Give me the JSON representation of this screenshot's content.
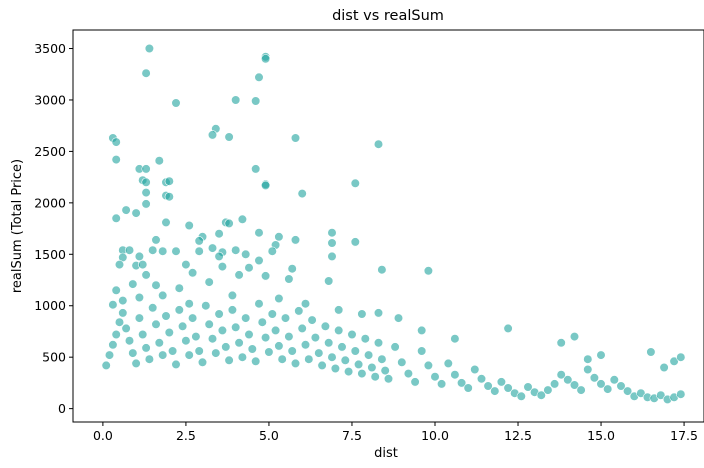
{
  "chart_data": {
    "type": "scatter",
    "title": "dist vs realSum",
    "xlabel": "dist",
    "ylabel": "realSum (Total Price)",
    "xlim": [
      -0.9,
      18.1
    ],
    "ylim": [
      -130,
      3680
    ],
    "xticks": [
      0.0,
      2.5,
      5.0,
      7.5,
      10.0,
      12.5,
      15.0,
      17.5
    ],
    "xtick_labels": [
      "0.0",
      "2.5",
      "5.0",
      "7.5",
      "10.0",
      "12.5",
      "15.0",
      "17.5"
    ],
    "yticks": [
      0,
      500,
      1000,
      1500,
      2000,
      2500,
      3000,
      3500
    ],
    "ytick_labels": [
      "0",
      "500",
      "1000",
      "1500",
      "2000",
      "2500",
      "3000",
      "3500"
    ],
    "grid": false,
    "marker_color": "#20a39e",
    "marker_edge_color": "#ffffff",
    "marker_alpha": 0.6,
    "series": [
      {
        "points": [
          [
            1.4,
            3500
          ],
          [
            1.3,
            3260
          ],
          [
            4.9,
            3420
          ],
          [
            4.9,
            3400
          ],
          [
            4.7,
            3220
          ],
          [
            4.0,
            3000
          ],
          [
            4.6,
            2990
          ],
          [
            2.2,
            2970
          ],
          [
            3.4,
            2720
          ],
          [
            3.3,
            2660
          ],
          [
            3.8,
            2640
          ],
          [
            5.8,
            2630
          ],
          [
            8.3,
            2570
          ],
          [
            0.3,
            2630
          ],
          [
            0.4,
            2590
          ],
          [
            0.4,
            2420
          ],
          [
            1.7,
            2410
          ],
          [
            4.6,
            2330
          ],
          [
            1.1,
            2330
          ],
          [
            1.3,
            2330
          ],
          [
            1.2,
            2220
          ],
          [
            1.3,
            2200
          ],
          [
            1.9,
            2200
          ],
          [
            2.0,
            2210
          ],
          [
            4.9,
            2180
          ],
          [
            4.9,
            2170
          ],
          [
            7.6,
            2190
          ],
          [
            6.0,
            2090
          ],
          [
            1.3,
            2100
          ],
          [
            1.9,
            2070
          ],
          [
            2.0,
            2060
          ],
          [
            0.7,
            1930
          ],
          [
            1.3,
            1990
          ],
          [
            1.0,
            1900
          ],
          [
            4.2,
            1840
          ],
          [
            3.7,
            1810
          ],
          [
            3.8,
            1800
          ],
          [
            1.9,
            1810
          ],
          [
            0.4,
            1850
          ],
          [
            2.6,
            1780
          ],
          [
            4.7,
            1710
          ],
          [
            6.9,
            1710
          ],
          [
            3.5,
            1700
          ],
          [
            5.3,
            1670
          ],
          [
            3.0,
            1670
          ],
          [
            2.9,
            1630
          ],
          [
            5.8,
            1640
          ],
          [
            7.6,
            1620
          ],
          [
            6.9,
            1610
          ],
          [
            1.6,
            1640
          ],
          [
            5.2,
            1590
          ],
          [
            3.3,
            1560
          ],
          [
            1.5,
            1540
          ],
          [
            0.6,
            1540
          ],
          [
            0.8,
            1540
          ],
          [
            1.8,
            1530
          ],
          [
            2.2,
            1530
          ],
          [
            2.9,
            1530
          ],
          [
            3.6,
            1520
          ],
          [
            4.0,
            1540
          ],
          [
            4.3,
            1500
          ],
          [
            5.1,
            1530
          ],
          [
            6.9,
            1480
          ],
          [
            8.4,
            1350
          ],
          [
            9.8,
            1340
          ],
          [
            0.6,
            1470
          ],
          [
            1.1,
            1480
          ],
          [
            3.5,
            1480
          ],
          [
            4.7,
            1440
          ],
          [
            0.5,
            1400
          ],
          [
            1.0,
            1390
          ],
          [
            1.2,
            1400
          ],
          [
            2.5,
            1400
          ],
          [
            3.6,
            1380
          ],
          [
            4.4,
            1370
          ],
          [
            5.7,
            1360
          ],
          [
            6.8,
            1240
          ],
          [
            1.3,
            1300
          ],
          [
            2.7,
            1320
          ],
          [
            4.1,
            1300
          ],
          [
            4.9,
            1290
          ],
          [
            5.6,
            1260
          ],
          [
            0.4,
            1150
          ],
          [
            0.9,
            1210
          ],
          [
            1.6,
            1200
          ],
          [
            2.3,
            1170
          ],
          [
            3.2,
            1230
          ],
          [
            0.3,
            1010
          ],
          [
            0.6,
            1050
          ],
          [
            1.1,
            1080
          ],
          [
            1.8,
            1100
          ],
          [
            2.6,
            1020
          ],
          [
            3.9,
            1100
          ],
          [
            5.3,
            1070
          ],
          [
            6.1,
            1020
          ],
          [
            7.1,
            960
          ],
          [
            7.8,
            920
          ],
          [
            8.3,
            930
          ],
          [
            8.9,
            880
          ],
          [
            9.6,
            760
          ],
          [
            10.6,
            680
          ],
          [
            12.2,
            780
          ],
          [
            13.8,
            640
          ],
          [
            14.2,
            700
          ],
          [
            14.6,
            480
          ],
          [
            15.0,
            520
          ],
          [
            16.5,
            550
          ],
          [
            16.9,
            400
          ],
          [
            17.2,
            460
          ],
          [
            17.4,
            500
          ],
          [
            0.1,
            420
          ],
          [
            0.2,
            520
          ],
          [
            0.3,
            620
          ],
          [
            0.4,
            720
          ],
          [
            0.5,
            840
          ],
          [
            0.6,
            930
          ],
          [
            0.7,
            780
          ],
          [
            0.8,
            660
          ],
          [
            0.9,
            540
          ],
          [
            1.0,
            440
          ],
          [
            1.1,
            880
          ],
          [
            1.2,
            720
          ],
          [
            1.3,
            590
          ],
          [
            1.4,
            480
          ],
          [
            1.5,
            980
          ],
          [
            1.6,
            820
          ],
          [
            1.7,
            640
          ],
          [
            1.8,
            520
          ],
          [
            1.9,
            900
          ],
          [
            2.0,
            740
          ],
          [
            2.1,
            560
          ],
          [
            2.2,
            430
          ],
          [
            2.3,
            960
          ],
          [
            2.4,
            800
          ],
          [
            2.5,
            660
          ],
          [
            2.6,
            520
          ],
          [
            2.7,
            880
          ],
          [
            2.8,
            700
          ],
          [
            2.9,
            560
          ],
          [
            3.0,
            450
          ],
          [
            3.1,
            1000
          ],
          [
            3.2,
            820
          ],
          [
            3.3,
            680
          ],
          [
            3.4,
            540
          ],
          [
            3.5,
            920
          ],
          [
            3.6,
            760
          ],
          [
            3.7,
            600
          ],
          [
            3.8,
            470
          ],
          [
            3.9,
            960
          ],
          [
            4.0,
            790
          ],
          [
            4.1,
            640
          ],
          [
            4.2,
            500
          ],
          [
            4.3,
            880
          ],
          [
            4.4,
            720
          ],
          [
            4.5,
            580
          ],
          [
            4.6,
            460
          ],
          [
            4.7,
            1020
          ],
          [
            4.8,
            840
          ],
          [
            4.9,
            690
          ],
          [
            5.0,
            550
          ],
          [
            5.1,
            920
          ],
          [
            5.2,
            760
          ],
          [
            5.3,
            610
          ],
          [
            5.4,
            480
          ],
          [
            5.5,
            880
          ],
          [
            5.6,
            700
          ],
          [
            5.7,
            560
          ],
          [
            5.8,
            440
          ],
          [
            5.9,
            950
          ],
          [
            6.0,
            780
          ],
          [
            6.1,
            620
          ],
          [
            6.2,
            480
          ],
          [
            6.3,
            860
          ],
          [
            6.4,
            690
          ],
          [
            6.5,
            540
          ],
          [
            6.6,
            420
          ],
          [
            6.7,
            800
          ],
          [
            6.8,
            640
          ],
          [
            6.9,
            500
          ],
          [
            7.0,
            390
          ],
          [
            7.1,
            760
          ],
          [
            7.2,
            600
          ],
          [
            7.3,
            470
          ],
          [
            7.4,
            360
          ],
          [
            7.5,
            720
          ],
          [
            7.6,
            560
          ],
          [
            7.7,
            430
          ],
          [
            7.8,
            340
          ],
          [
            7.9,
            680
          ],
          [
            8.0,
            520
          ],
          [
            8.1,
            400
          ],
          [
            8.2,
            310
          ],
          [
            8.3,
            640
          ],
          [
            8.4,
            480
          ],
          [
            8.5,
            370
          ],
          [
            8.6,
            290
          ],
          [
            8.8,
            600
          ],
          [
            9.0,
            450
          ],
          [
            9.2,
            340
          ],
          [
            9.4,
            260
          ],
          [
            9.6,
            560
          ],
          [
            9.8,
            420
          ],
          [
            10.0,
            310
          ],
          [
            10.2,
            240
          ],
          [
            10.4,
            440
          ],
          [
            10.6,
            330
          ],
          [
            10.8,
            250
          ],
          [
            11.0,
            200
          ],
          [
            11.2,
            380
          ],
          [
            11.4,
            290
          ],
          [
            11.6,
            220
          ],
          [
            11.8,
            170
          ],
          [
            12.0,
            260
          ],
          [
            12.2,
            200
          ],
          [
            12.4,
            150
          ],
          [
            12.6,
            120
          ],
          [
            12.8,
            210
          ],
          [
            13.0,
            160
          ],
          [
            13.2,
            130
          ],
          [
            13.4,
            180
          ],
          [
            13.6,
            240
          ],
          [
            13.8,
            330
          ],
          [
            14.0,
            280
          ],
          [
            14.2,
            230
          ],
          [
            14.4,
            180
          ],
          [
            14.6,
            380
          ],
          [
            14.8,
            300
          ],
          [
            15.0,
            240
          ],
          [
            15.2,
            190
          ],
          [
            15.4,
            280
          ],
          [
            15.6,
            220
          ],
          [
            15.8,
            170
          ],
          [
            16.0,
            120
          ],
          [
            16.2,
            150
          ],
          [
            16.4,
            110
          ],
          [
            16.6,
            100
          ],
          [
            16.8,
            130
          ],
          [
            17.0,
            90
          ],
          [
            17.2,
            110
          ],
          [
            17.4,
            140
          ]
        ]
      }
    ]
  }
}
